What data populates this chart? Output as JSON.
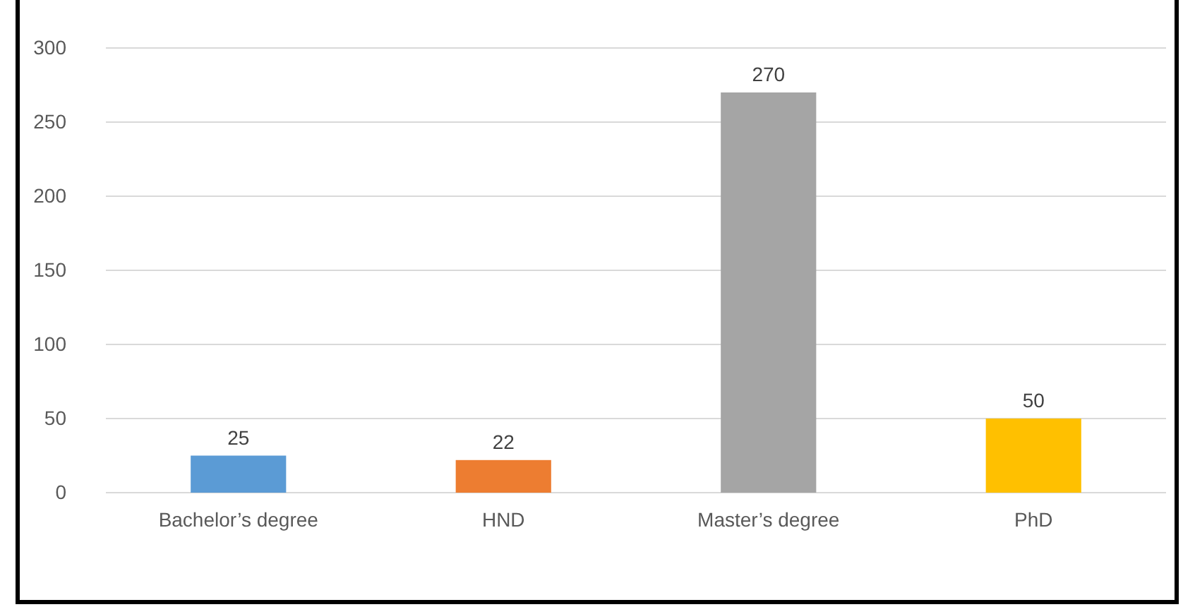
{
  "chart_data": {
    "type": "bar",
    "categories": [
      "Bachelor’s degree",
      "HND",
      "Master’s degree",
      "PhD"
    ],
    "values": [
      25,
      22,
      270,
      50
    ],
    "colors": [
      "#5b9bd5",
      "#ed7d31",
      "#a5a5a5",
      "#ffc000"
    ],
    "ylim": [
      0,
      300
    ],
    "yticks": [
      0,
      50,
      100,
      150,
      200,
      250,
      300
    ],
    "grid": "y",
    "data_labels": true
  }
}
